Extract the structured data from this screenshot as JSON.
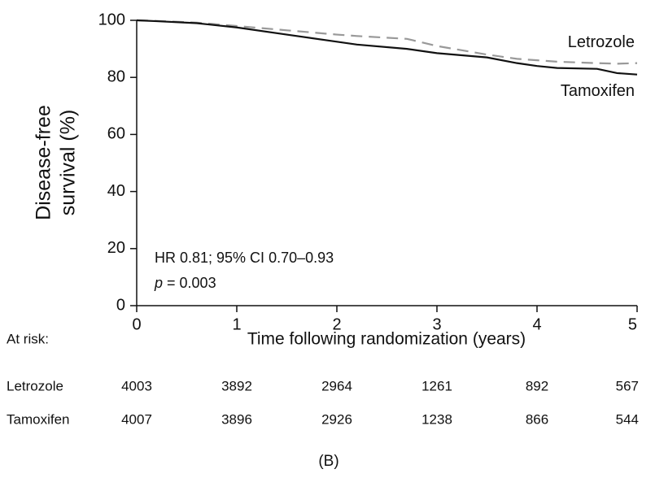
{
  "chart_data": {
    "type": "line",
    "ylabel": [
      "Disease-free",
      "survival (%)"
    ],
    "xlabel": "Time following randomization (years)",
    "x": [
      0,
      0.2,
      0.6,
      1,
      1.5,
      2,
      2.2,
      2.7,
      3,
      3.5,
      3.8,
      4,
      4.2,
      4.6,
      4.8,
      5
    ],
    "series": [
      {
        "name": "Letrozole",
        "color": "#999999",
        "dashed": true,
        "values": [
          100,
          99.8,
          99.2,
          98,
          96.5,
          95,
          94.5,
          93.5,
          91,
          88,
          86.5,
          86,
          85.5,
          85,
          84.8,
          85
        ]
      },
      {
        "name": "Tamoxifen",
        "color": "#111111",
        "dashed": false,
        "values": [
          100,
          99.7,
          99,
          97.5,
          95,
          92.5,
          91.5,
          90,
          88.5,
          87,
          85,
          84,
          83.3,
          83,
          81.5,
          81
        ]
      }
    ],
    "xlim": [
      0,
      5
    ],
    "xticks": [
      0,
      1,
      2,
      3,
      4,
      5
    ],
    "ylim": [
      0,
      100
    ],
    "yticks": [
      0,
      20,
      40,
      60,
      80,
      100
    ],
    "annotations": [
      [
        "HR 0.81; 95% CI 0.70–0.93"
      ],
      [
        "p",
        "= 0.003"
      ]
    ],
    "at_risk": {
      "label": "At risk:",
      "rows": [
        {
          "name": "Letrozole",
          "counts": [
            4003,
            3892,
            2964,
            1261,
            892,
            567
          ]
        },
        {
          "name": "Tamoxifen",
          "counts": [
            4007,
            3896,
            2926,
            1238,
            866,
            544
          ]
        }
      ]
    },
    "panel_label": "(B)"
  }
}
